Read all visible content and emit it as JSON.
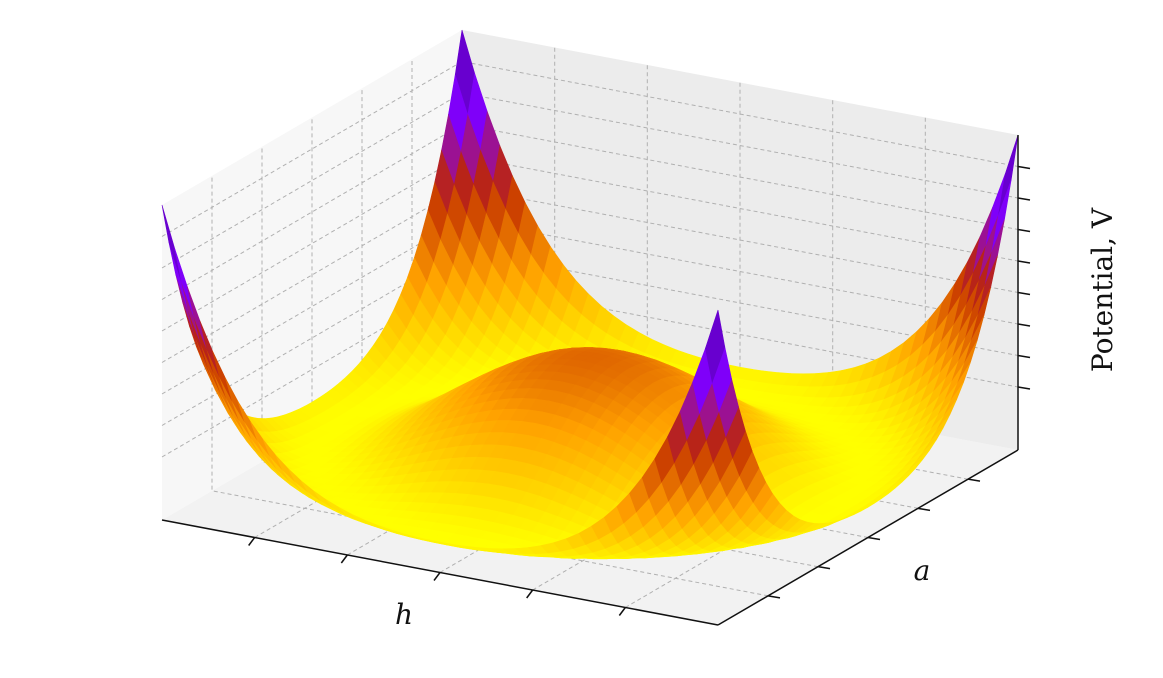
{
  "chart_data": {
    "type": "surface",
    "xlabel": "h",
    "ylabel": "a",
    "zlabel": "Potential, V"
  }
}
